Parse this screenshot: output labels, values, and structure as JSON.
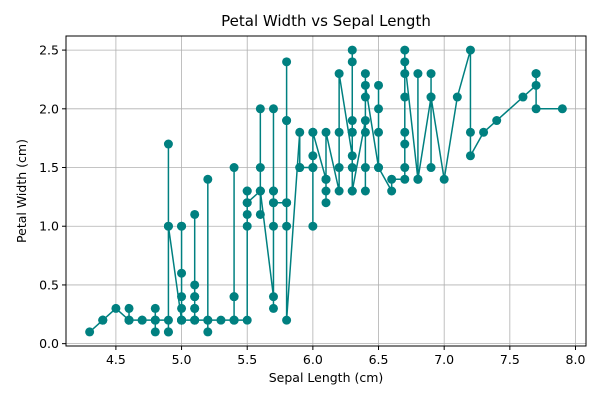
{
  "chart_data": {
    "type": "line",
    "title": "Petal Width vs Sepal Length",
    "xlabel": "Sepal Length (cm)",
    "ylabel": "Petal Width (cm)",
    "xlim": [
      4.12,
      8.08
    ],
    "ylim": [
      -0.02,
      2.62
    ],
    "xticks": [
      4.5,
      5.0,
      5.5,
      6.0,
      6.5,
      7.0,
      7.5,
      8.0
    ],
    "xtick_labels": [
      "4.5",
      "5.0",
      "5.5",
      "6.0",
      "6.5",
      "7.0",
      "7.5",
      "8.0"
    ],
    "yticks": [
      0.0,
      0.5,
      1.0,
      1.5,
      2.0,
      2.5
    ],
    "ytick_labels": [
      "0.0",
      "0.5",
      "1.0",
      "1.5",
      "2.0",
      "2.5"
    ],
    "grid": true,
    "color": "#008080",
    "series": [
      {
        "x": [
          4.3,
          4.4,
          4.4,
          4.4,
          4.5,
          4.6,
          4.6,
          4.6,
          4.6,
          4.7,
          4.7,
          4.8,
          4.8,
          4.8,
          4.8,
          4.8,
          4.9,
          4.9,
          4.9,
          4.9,
          4.9,
          4.9,
          5.0,
          5.0,
          5.0,
          5.0,
          5.0,
          5.0,
          5.0,
          5.0,
          5.0,
          5.0,
          5.1,
          5.1,
          5.1,
          5.1,
          5.1,
          5.1,
          5.1,
          5.1,
          5.1,
          5.2,
          5.2,
          5.2,
          5.2,
          5.3,
          5.4,
          5.4,
          5.4,
          5.4,
          5.4,
          5.4,
          5.5,
          5.5,
          5.5,
          5.5,
          5.5,
          5.5,
          5.5,
          5.6,
          5.6,
          5.6,
          5.6,
          5.6,
          5.6,
          5.7,
          5.7,
          5.7,
          5.7,
          5.7,
          5.7,
          5.7,
          5.7,
          5.8,
          5.8,
          5.8,
          5.8,
          5.8,
          5.8,
          5.8,
          5.9,
          5.9,
          5.9,
          6.0,
          6.0,
          6.0,
          6.0,
          6.0,
          6.0,
          6.1,
          6.1,
          6.1,
          6.1,
          6.1,
          6.1,
          6.2,
          6.2,
          6.2,
          6.2,
          6.3,
          6.3,
          6.3,
          6.3,
          6.3,
          6.3,
          6.3,
          6.3,
          6.3,
          6.4,
          6.4,
          6.4,
          6.4,
          6.4,
          6.4,
          6.4,
          6.5,
          6.5,
          6.5,
          6.5,
          6.5,
          6.6,
          6.6,
          6.7,
          6.7,
          6.7,
          6.7,
          6.7,
          6.7,
          6.7,
          6.7,
          6.8,
          6.8,
          6.8,
          6.9,
          6.9,
          6.9,
          6.9,
          7.0,
          7.1,
          7.2,
          7.2,
          7.2,
          7.3,
          7.4,
          7.6,
          7.7,
          7.7,
          7.7,
          7.7,
          7.9
        ],
        "y": [
          0.1,
          0.2,
          0.2,
          0.2,
          0.3,
          0.2,
          0.2,
          0.3,
          0.2,
          0.2,
          0.2,
          0.2,
          0.1,
          0.3,
          0.2,
          0.2,
          0.2,
          0.1,
          1.0,
          1.7,
          0.1,
          1.0,
          0.2,
          0.2,
          0.4,
          0.6,
          1.0,
          0.2,
          0.3,
          0.2,
          1.0,
          0.2,
          0.2,
          0.4,
          0.3,
          0.3,
          0.5,
          0.2,
          0.4,
          1.1,
          0.2,
          0.2,
          1.4,
          0.1,
          0.2,
          0.2,
          0.2,
          0.4,
          0.4,
          0.2,
          1.5,
          0.2,
          0.2,
          1.3,
          1.0,
          1.1,
          1.2,
          1.3,
          1.2,
          1.3,
          2.0,
          1.1,
          1.5,
          1.3,
          1.3,
          0.4,
          0.3,
          1.3,
          1.0,
          1.2,
          2.0,
          1.3,
          1.2,
          1.2,
          1.0,
          1.2,
          1.9,
          2.4,
          1.9,
          0.2,
          1.8,
          1.5,
          1.5,
          1.5,
          1.6,
          1.0,
          1.8,
          1.5,
          1.8,
          1.4,
          1.4,
          1.3,
          1.2,
          1.4,
          1.8,
          1.3,
          1.8,
          1.5,
          2.3,
          1.6,
          1.5,
          1.3,
          1.9,
          1.8,
          2.5,
          2.4,
          1.8,
          1.3,
          1.9,
          1.5,
          1.3,
          2.3,
          2.1,
          1.8,
          2.2,
          1.5,
          2.0,
          2.2,
          1.8,
          1.5,
          1.3,
          1.4,
          1.4,
          1.5,
          1.7,
          1.8,
          2.5,
          2.3,
          2.1,
          2.4,
          1.4,
          2.3,
          1.4,
          2.1,
          2.3,
          1.5,
          2.1,
          1.4,
          2.1,
          2.5,
          1.8,
          1.6,
          1.8,
          1.9,
          2.1,
          2.2,
          2.3,
          2.3,
          2.0,
          2.0
        ]
      }
    ]
  }
}
